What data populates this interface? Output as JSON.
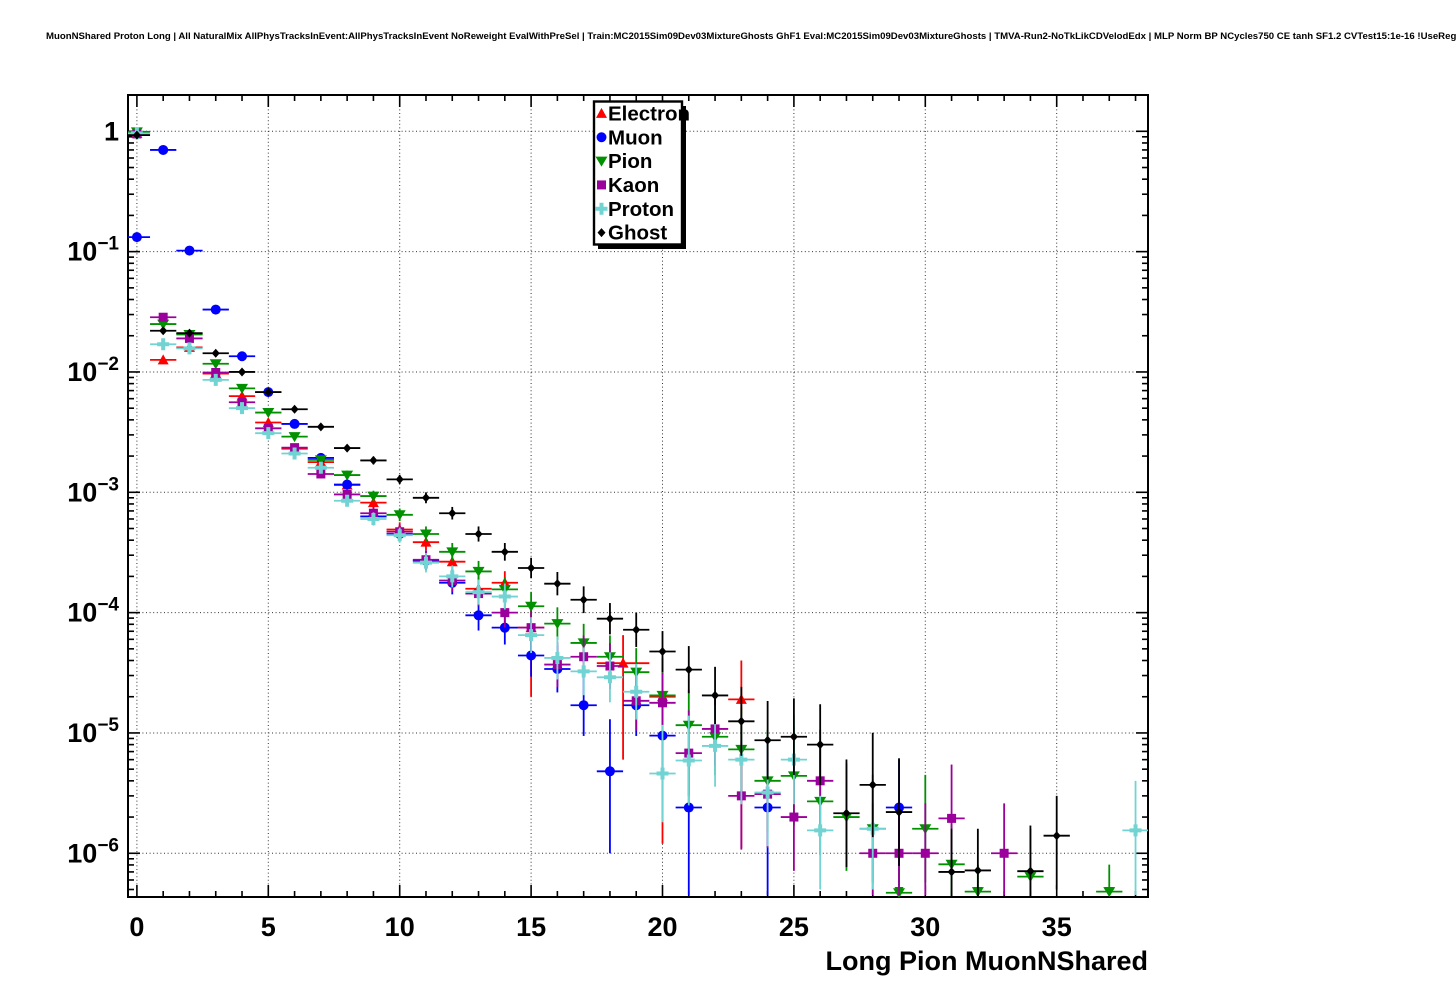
{
  "page": {
    "background": "#ffffff",
    "frame_color": "#000000",
    "grid_color": "#333333"
  },
  "header": {
    "title": "MuonNShared Proton Long | All NaturalMix AllPhysTracksInEvent:AllPhysTracksInEvent NoReweight EvalWithPreSel | Train:MC2015Sim09Dev03MixtureGhosts GhF1 Eval:MC2015Sim09Dev03MixtureGhosts | TMVA-Run2-NoTkLikCDVelodEdx | MLP Norm BP NCycles750 CE tanh SF1.2 CVTest15:1e-16 !UseReg"
  },
  "chart_data": {
    "type": "scatter",
    "title": "MuonNShared Proton Long",
    "xlabel": "Long Pion MuonNShared",
    "ylabel": "",
    "yscale": "log",
    "xlim": [
      -0.5,
      38.5
    ],
    "ylim": [
      4.3e-07,
      2.0
    ],
    "grid": "dotted",
    "x_ticks": [
      0,
      5,
      10,
      15,
      20,
      25,
      30,
      35
    ],
    "y_tick_exponents": [
      0,
      -1,
      -2,
      -3,
      -4,
      -5,
      -6
    ],
    "legend": {
      "position": "top-center",
      "entries": [
        "Electron",
        "Muon",
        "Pion",
        "Kaon",
        "Proton",
        "Ghost"
      ]
    },
    "series": [
      {
        "name": "Electron",
        "color": "#ff0000",
        "marker": "triangle-up",
        "points": [
          [
            0,
            0.96
          ],
          [
            1,
            0.0126
          ],
          [
            2,
            0.016
          ],
          [
            3,
            0.0097
          ],
          [
            4,
            0.0063
          ],
          [
            5,
            0.0038
          ],
          [
            6,
            0.0023
          ],
          [
            7,
            0.00178
          ],
          [
            8,
            0.00115
          ],
          [
            9,
            0.00082
          ],
          [
            10,
            0.00049
          ],
          [
            11,
            0.000385
          ],
          [
            12,
            0.000265
          ],
          [
            13,
            0.000158
          ],
          [
            14,
            0.000177
          ],
          [
            15,
            7.5e-05
          ],
          [
            18.5,
            3.8e-05
          ],
          [
            20,
            2e-05
          ],
          [
            23,
            1.9e-05
          ]
        ],
        "wide": [
          18.5
        ],
        "err": [
          [
            15,
            2e-05,
            0.00011
          ],
          [
            18.5,
            6e-06,
            6.5e-05
          ],
          [
            20,
            1.2e-06,
            4.2e-05
          ],
          [
            23,
            1.1e-06,
            4e-05
          ]
        ]
      },
      {
        "name": "Muon",
        "color": "#0000ff",
        "marker": "circle",
        "points": [
          [
            0,
            0.132
          ],
          [
            1,
            0.7
          ],
          [
            2,
            0.102
          ],
          [
            3,
            0.033
          ],
          [
            4,
            0.0135
          ],
          [
            5,
            0.0068
          ],
          [
            6,
            0.0037
          ],
          [
            7,
            0.00193
          ],
          [
            8,
            0.00116
          ],
          [
            9,
            0.00063
          ],
          [
            10,
            0.00045
          ],
          [
            11,
            0.00027
          ],
          [
            12,
            0.000177
          ],
          [
            13,
            9.5e-05
          ],
          [
            14,
            7.5e-05
          ],
          [
            15,
            4.4e-05
          ],
          [
            16,
            3.4e-05
          ],
          [
            17,
            1.7e-05
          ],
          [
            18,
            4.8e-06
          ],
          [
            19,
            1.7e-05
          ],
          [
            20,
            9.5e-06
          ],
          [
            21,
            2.4e-06
          ],
          [
            24,
            2.4e-06
          ],
          [
            29,
            2.4e-06
          ]
        ],
        "err": [
          [
            18,
            1e-06,
            1.3e-05
          ],
          [
            21,
            4.5e-07,
            7e-06
          ],
          [
            24,
            4.5e-07,
            7e-06
          ],
          [
            29,
            4.5e-07,
            6e-06
          ]
        ]
      },
      {
        "name": "Pion",
        "color": "#009000",
        "marker": "triangle-down",
        "points": [
          [
            0,
            0.99
          ],
          [
            1,
            0.025
          ],
          [
            2,
            0.0205
          ],
          [
            3,
            0.0117
          ],
          [
            4,
            0.0073
          ],
          [
            5,
            0.0046
          ],
          [
            6,
            0.0029
          ],
          [
            7,
            0.00186
          ],
          [
            8,
            0.00139
          ],
          [
            9,
            0.00093
          ],
          [
            10,
            0.00065
          ],
          [
            11,
            0.00045
          ],
          [
            12,
            0.00032
          ],
          [
            13,
            0.00022
          ],
          [
            14,
            0.000156
          ],
          [
            15,
            0.000113
          ],
          [
            16,
            8.1e-05
          ],
          [
            17,
            5.6e-05
          ],
          [
            18,
            4.3e-05
          ],
          [
            19,
            3.2e-05
          ],
          [
            20,
            2.05e-05
          ],
          [
            21,
            1.16e-05
          ],
          [
            22,
            9.3e-06
          ],
          [
            23,
            7.3e-06
          ],
          [
            24,
            4e-06
          ],
          [
            25,
            4.4e-06
          ],
          [
            26,
            2.7e-06
          ],
          [
            27,
            2e-06
          ],
          [
            28,
            1.6e-06
          ],
          [
            30,
            1.6e-06
          ],
          [
            31,
            8.1e-07
          ],
          [
            34,
            6.4e-07
          ]
        ],
        "arrows": [
          [
            29,
            4.7e-07
          ],
          [
            32,
            4.8e-07
          ],
          [
            37,
            4.8e-07
          ]
        ],
        "err": [
          [
            31,
            4.5e-07,
            2e-06
          ],
          [
            34,
            4.5e-07,
            1.6e-06
          ]
        ]
      },
      {
        "name": "Kaon",
        "color": "#9c009c",
        "marker": "square",
        "points": [
          [
            0,
            0.95
          ],
          [
            1,
            0.0285
          ],
          [
            2,
            0.019
          ],
          [
            3,
            0.0099
          ],
          [
            4,
            0.0056
          ],
          [
            5,
            0.0034
          ],
          [
            6,
            0.00235
          ],
          [
            7,
            0.00142
          ],
          [
            8,
            0.00096
          ],
          [
            9,
            0.00067
          ],
          [
            10,
            0.00047
          ],
          [
            11,
            0.000275
          ],
          [
            12,
            0.000185
          ],
          [
            13,
            0.000144
          ],
          [
            14,
            0.0001
          ],
          [
            15,
            7.5e-05
          ],
          [
            16,
            3.7e-05
          ],
          [
            17,
            4.3e-05
          ],
          [
            18,
            3.6e-05
          ],
          [
            19,
            1.85e-05
          ],
          [
            20,
            1.78e-05
          ],
          [
            21,
            6.8e-06
          ],
          [
            22,
            1.08e-05
          ],
          [
            23,
            3e-06
          ],
          [
            24,
            3.1e-06
          ],
          [
            25,
            2e-06
          ],
          [
            26,
            4e-06
          ],
          [
            28,
            1e-06
          ],
          [
            29,
            1e-06
          ],
          [
            30,
            1e-06
          ],
          [
            31,
            1.95e-06
          ],
          [
            33,
            1e-06
          ]
        ],
        "err": [
          [
            28,
            4.5e-07,
            2.6e-06
          ],
          [
            29,
            4.5e-07,
            2.6e-06
          ],
          [
            30,
            4.5e-07,
            2.6e-06
          ],
          [
            33,
            4.5e-07,
            2.6e-06
          ]
        ]
      },
      {
        "name": "Proton",
        "color": "#72d3d3",
        "marker": "cross",
        "points": [
          [
            0,
            0.96
          ],
          [
            1,
            0.017
          ],
          [
            2,
            0.0157
          ],
          [
            3,
            0.0086
          ],
          [
            4,
            0.005
          ],
          [
            5,
            0.0031
          ],
          [
            6,
            0.0021
          ],
          [
            7,
            0.0016
          ],
          [
            8,
            0.00085
          ],
          [
            9,
            0.0006
          ],
          [
            10,
            0.00044
          ],
          [
            11,
            0.00026
          ],
          [
            12,
            0.0002
          ],
          [
            13,
            0.000148
          ],
          [
            14,
            0.000136
          ],
          [
            15,
            6.5e-05
          ],
          [
            16,
            4.2e-05
          ],
          [
            17,
            3.25e-05
          ],
          [
            18,
            2.9e-05
          ],
          [
            19,
            2.2e-05
          ],
          [
            20,
            4.6e-06
          ],
          [
            21,
            5.9e-06
          ],
          [
            22,
            7.8e-06
          ],
          [
            23,
            6e-06
          ],
          [
            24,
            3.2e-06
          ],
          [
            25,
            6e-06
          ],
          [
            26,
            1.55e-06
          ],
          [
            28,
            1.6e-06
          ],
          [
            38,
            1.55e-06
          ]
        ],
        "err": [
          [
            26,
            5e-07,
            3e-06
          ],
          [
            28,
            5e-07,
            3e-06
          ],
          [
            38,
            4.5e-07,
            4e-06
          ]
        ]
      },
      {
        "name": "Ghost",
        "color": "#000000",
        "marker": "diamond",
        "points": [
          [
            0,
            0.93
          ],
          [
            1,
            0.022
          ],
          [
            2,
            0.021
          ],
          [
            3,
            0.0143
          ],
          [
            4,
            0.01
          ],
          [
            5,
            0.0068
          ],
          [
            6,
            0.0049
          ],
          [
            7,
            0.0035
          ],
          [
            8,
            0.00233
          ],
          [
            9,
            0.00184
          ],
          [
            10,
            0.00128
          ],
          [
            11,
            0.0009
          ],
          [
            12,
            0.00067
          ],
          [
            13,
            0.00045
          ],
          [
            14,
            0.00032
          ],
          [
            15,
            0.000235
          ],
          [
            16,
            0.000174
          ],
          [
            17,
            0.000128
          ],
          [
            18,
            8.9e-05
          ],
          [
            19,
            7.2e-05
          ],
          [
            20,
            4.75e-05
          ],
          [
            21,
            3.36e-05
          ],
          [
            22,
            2.05e-05
          ],
          [
            23,
            1.25e-05
          ],
          [
            24,
            8.7e-06
          ],
          [
            25,
            9.3e-06
          ],
          [
            26,
            8e-06
          ],
          [
            27,
            2.15e-06
          ],
          [
            28,
            3.7e-06
          ],
          [
            29,
            2.2e-06
          ],
          [
            31,
            7e-07
          ],
          [
            32,
            7.2e-07
          ],
          [
            34,
            7.1e-07
          ],
          [
            35,
            1.4e-06
          ]
        ],
        "err": [
          [
            31,
            4.3e-07,
            1.6e-06
          ],
          [
            32,
            4.3e-07,
            1.6e-06
          ],
          [
            34,
            4.3e-07,
            1.7e-06
          ],
          [
            35,
            5e-07,
            3e-06
          ]
        ]
      }
    ]
  }
}
